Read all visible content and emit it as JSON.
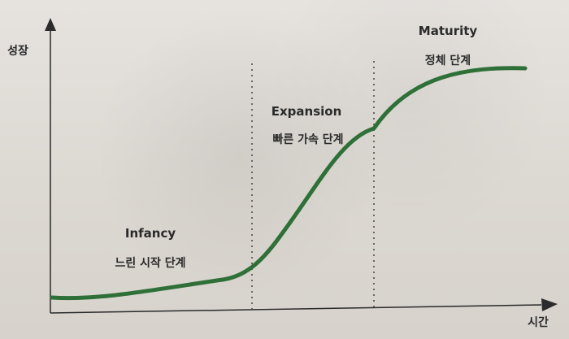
{
  "diagram": {
    "y_axis_label": "성장",
    "x_axis_label": "시간",
    "phases": [
      {
        "title": "Infancy",
        "subtitle": "느린 시작 단계"
      },
      {
        "title": "Expansion",
        "subtitle": "빠른 가속 단계"
      },
      {
        "title": "Maturity",
        "subtitle": "정체 단계"
      }
    ],
    "colors": {
      "curve": "#2f6f38",
      "axes": "#2b2b2b",
      "divider": "#444444",
      "text": "#2a2a2a"
    }
  }
}
